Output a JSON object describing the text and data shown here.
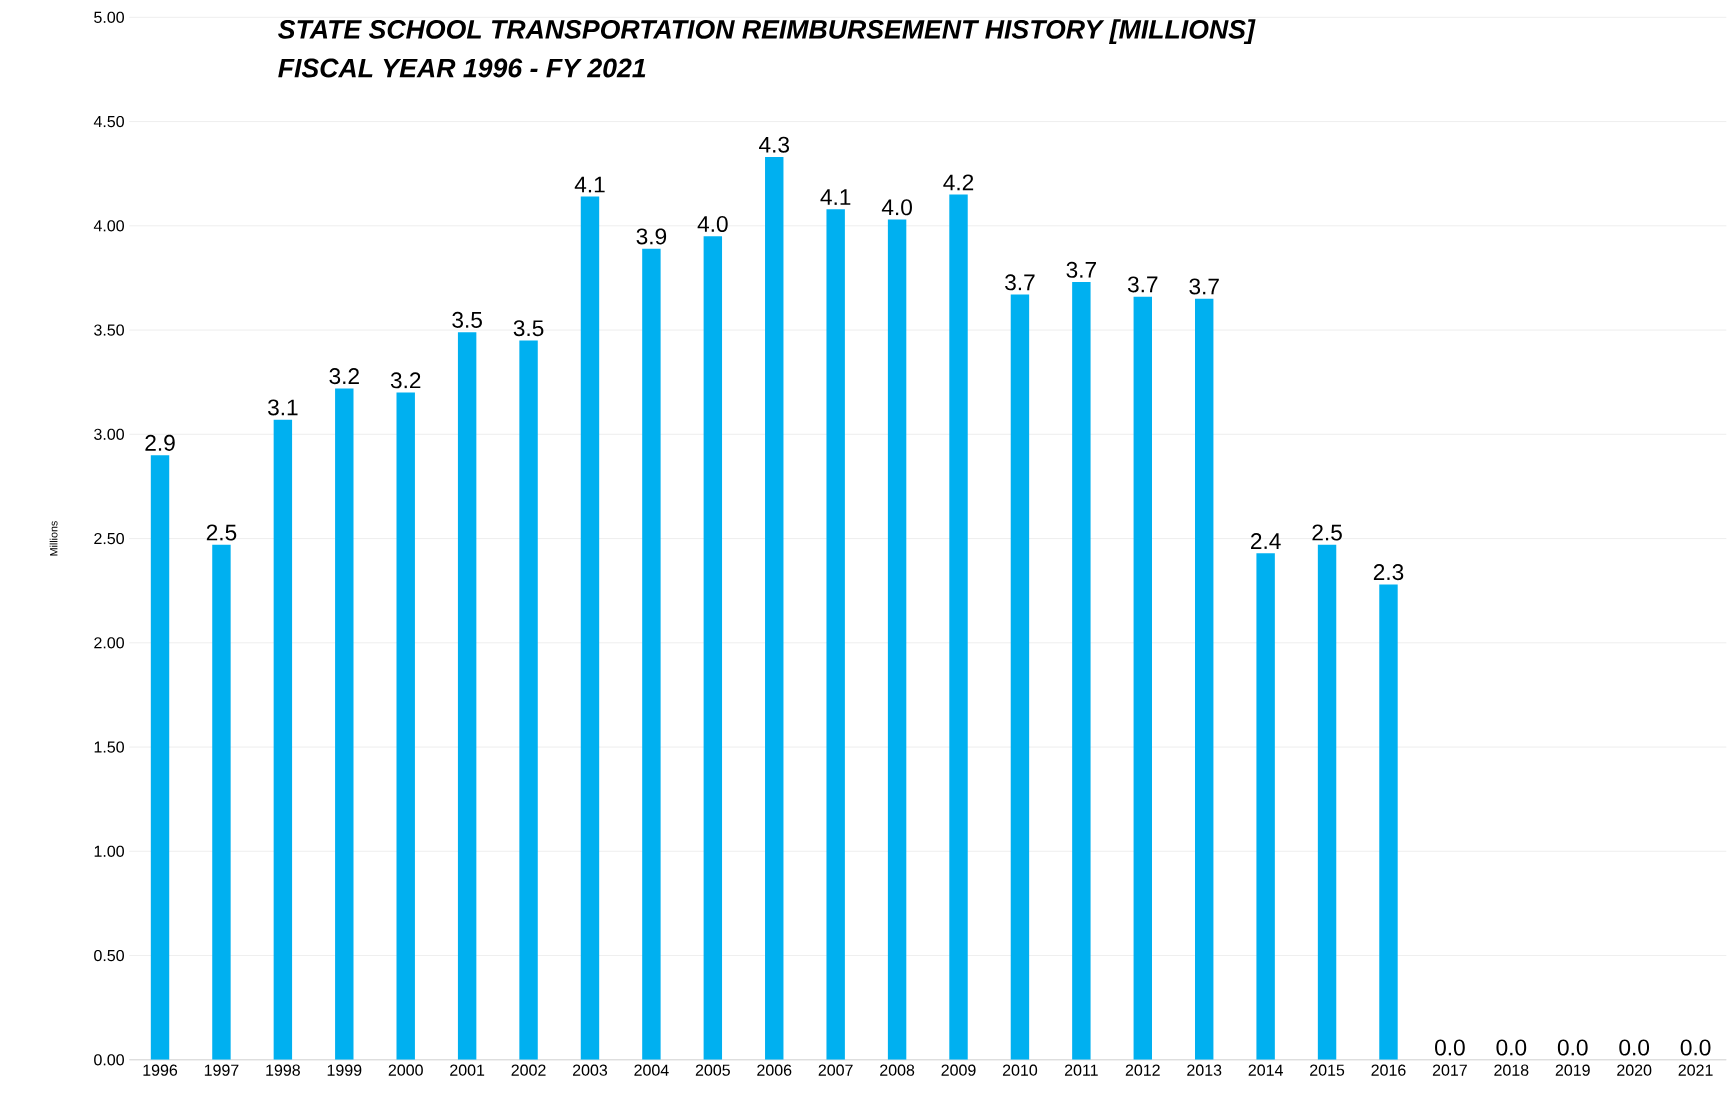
{
  "chart_data": {
    "type": "bar",
    "title": "STATE SCHOOL TRANSPORTATION REIMBURSEMENT HISTORY [MILLIONS]\nFISCAL YEAR 1996 - FY 2021",
    "ylabel": "Millions",
    "categories": [
      "1996",
      "1997",
      "1998",
      "1999",
      "2000",
      "2001",
      "2002",
      "2003",
      "2004",
      "2005",
      "2006",
      "2007",
      "2008",
      "2009",
      "2010",
      "2011",
      "2012",
      "2013",
      "2014",
      "2015",
      "2016",
      "2017",
      "2018",
      "2019",
      "2020",
      "2021"
    ],
    "values": [
      2.9,
      2.47,
      3.07,
      3.22,
      3.2,
      3.49,
      3.45,
      4.14,
      3.89,
      3.95,
      4.33,
      4.08,
      4.03,
      4.15,
      3.67,
      3.73,
      3.66,
      3.65,
      2.43,
      2.47,
      2.28,
      0,
      0,
      0,
      0,
      0
    ],
    "value_labels": [
      "2.9",
      "2.5",
      "3.1",
      "3.2",
      "3.2",
      "3.5",
      "3.5",
      "4.1",
      "3.9",
      "4.0",
      "4.3",
      "4.1",
      "4.0",
      "4.2",
      "3.7",
      "3.7",
      "3.7",
      "3.7",
      "2.4",
      "2.5",
      "2.3",
      "0.0",
      "0.0",
      "0.0",
      "0.0",
      "0.0"
    ],
    "color": "#00b0f0",
    "ylim": [
      0,
      5
    ],
    "yticks": [
      {
        "value": 0,
        "label": "0.00"
      },
      {
        "value": 0.5,
        "label": "0.50"
      },
      {
        "value": 1,
        "label": "1.00"
      },
      {
        "value": 1.5,
        "label": "1.50"
      },
      {
        "value": 2,
        "label": "2.00"
      },
      {
        "value": 2.5,
        "label": "2.50"
      },
      {
        "value": 3,
        "label": "3.00"
      },
      {
        "value": 3.5,
        "label": "3.50"
      },
      {
        "value": 4,
        "label": "4.00"
      },
      {
        "value": 4.5,
        "label": "4.50"
      },
      {
        "value": 5,
        "label": "5.00"
      }
    ],
    "grid": "y"
  }
}
